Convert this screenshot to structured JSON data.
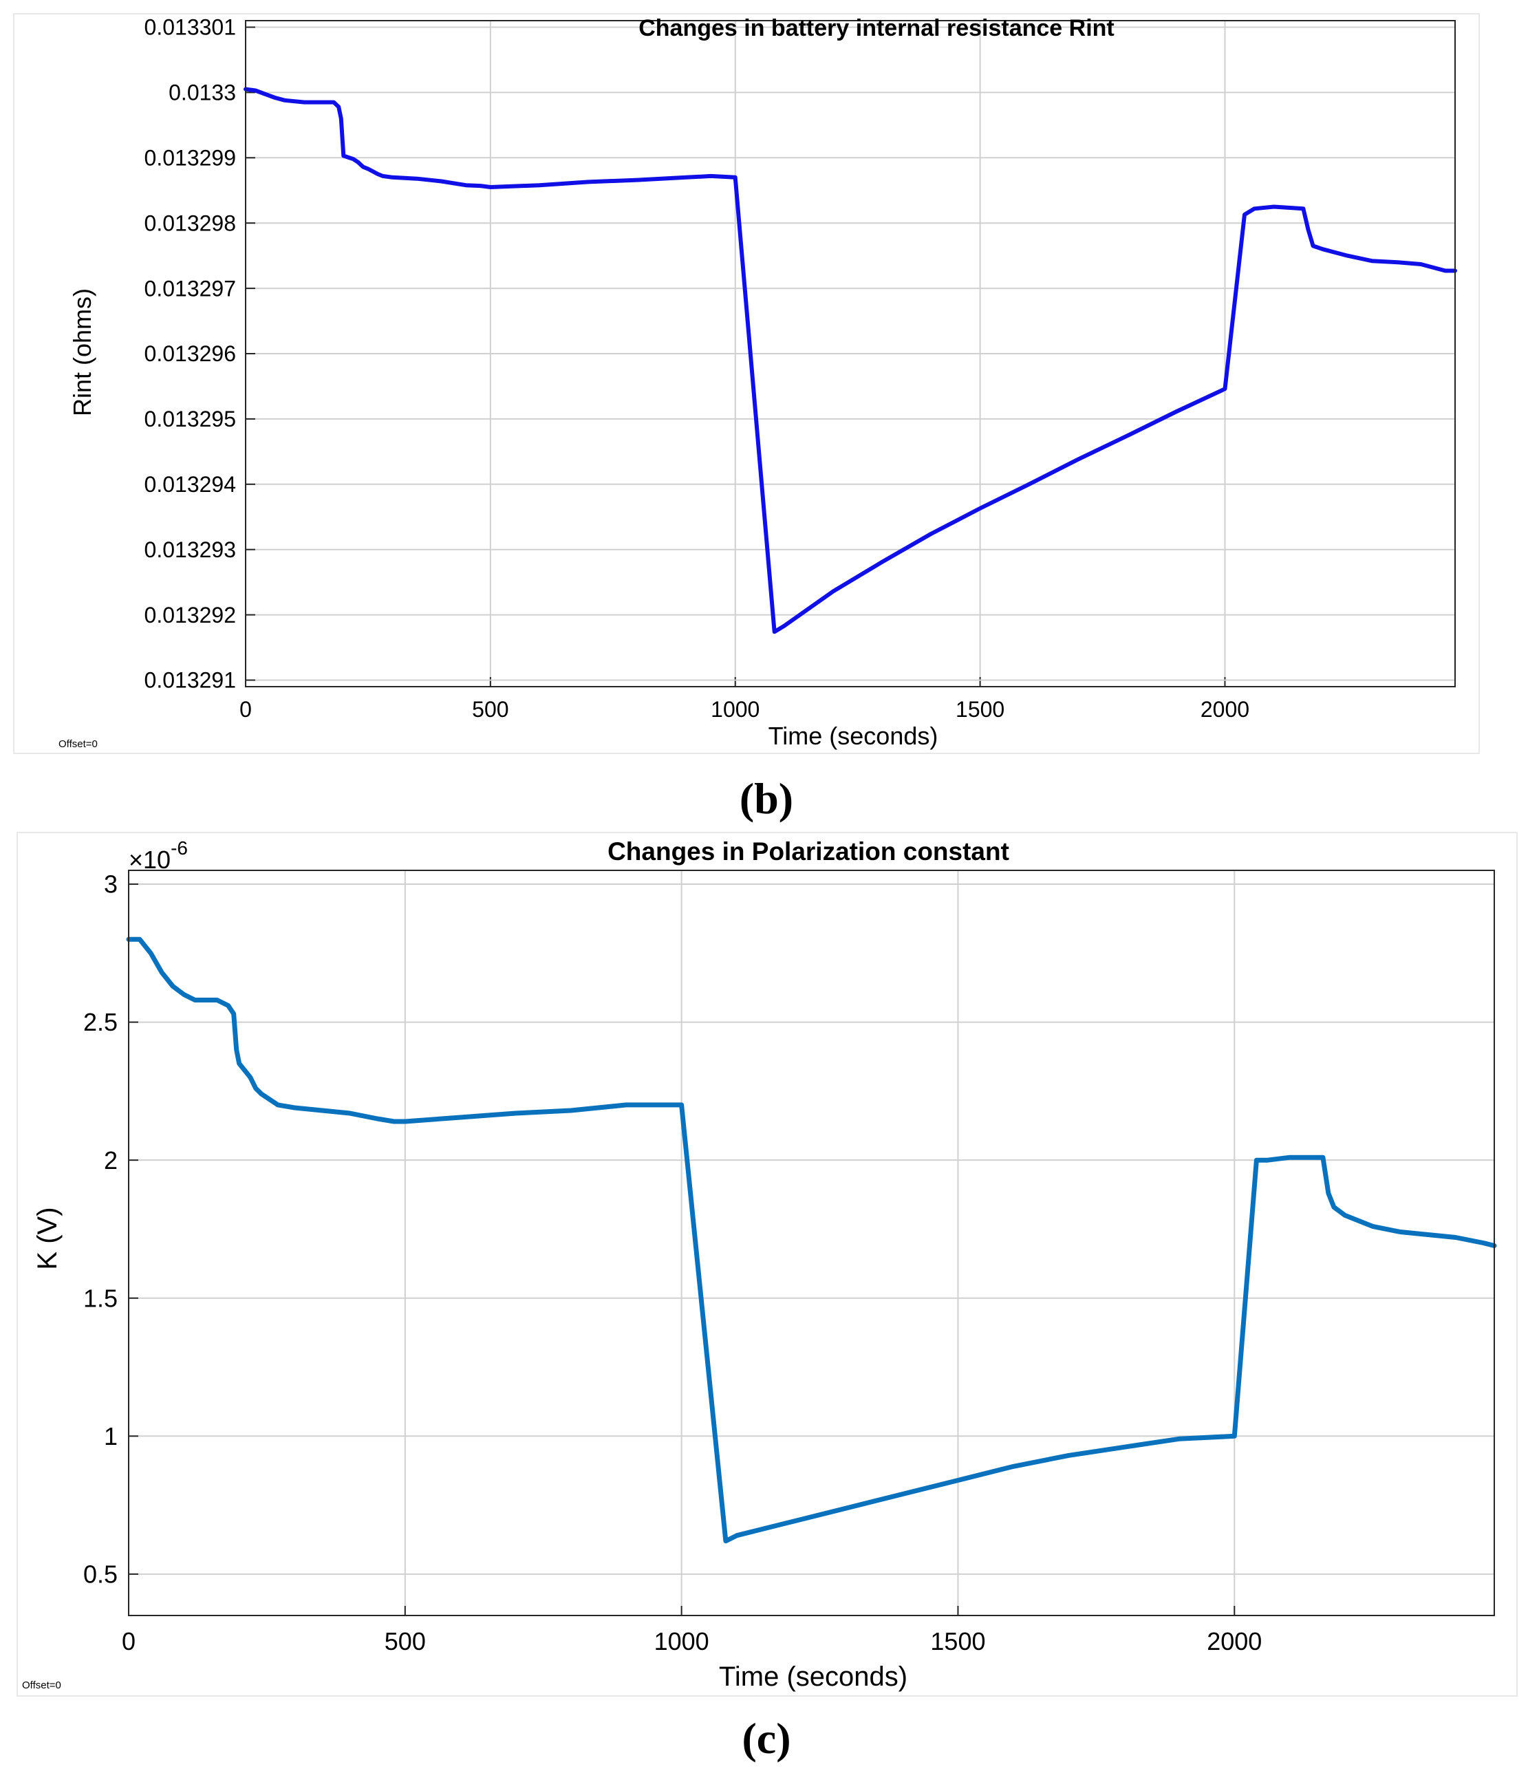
{
  "charts": [
    {
      "panel_label": "(b)",
      "offset_text": "Offset=0",
      "chart_data": {
        "type": "line",
        "title": "Changes in battery internal resistance  Rint",
        "xlabel": "Time (seconds)",
        "ylabel": "Rint (ohms)",
        "xlim": [
          0,
          2470
        ],
        "ylim": [
          0.0132909,
          0.0133011
        ],
        "x_ticks": [
          0,
          500,
          1000,
          1500,
          2000
        ],
        "x_tick_labels": [
          "0",
          "500",
          "1000",
          "1500",
          "2000"
        ],
        "y_ticks": [
          0.013291,
          0.013292,
          0.013293,
          0.013294,
          0.013295,
          0.013296,
          0.013297,
          0.013298,
          0.013299,
          0.0133,
          0.013301
        ],
        "y_tick_labels": [
          "0.013291",
          "0.013292",
          "0.013293",
          "0.013294",
          "0.013295",
          "0.013296",
          "0.013297",
          "0.013298",
          "0.013299",
          "0.0133",
          "0.013301"
        ],
        "grid": true,
        "line_color": "#1010e6",
        "series": [
          {
            "x": [
              0,
              20,
              40,
              60,
              80,
              120,
              150,
              180,
              190,
              195,
              200,
              220,
              230,
              240,
              250,
              270,
              280,
              300,
              350,
              400,
              450,
              480,
              500,
              600,
              700,
              800,
              900,
              950,
              1000,
              1080,
              1100,
              1200,
              1300,
              1400,
              1500,
              1600,
              1700,
              1800,
              1900,
              2000,
              2040,
              2060,
              2100,
              2160,
              2170,
              2180,
              2200,
              2250,
              2300,
              2350,
              2400,
              2450,
              2470
            ],
            "y": [
              0.01330005,
              0.01330003,
              0.013299975,
              0.01329992,
              0.01329988,
              0.01329985,
              0.01329985,
              0.01329985,
              0.01329978,
              0.0132996,
              0.01329903,
              0.01329898,
              0.01329893,
              0.01329886,
              0.01329883,
              0.01329875,
              0.01329872,
              0.0132987,
              0.01329868,
              0.01329864,
              0.01329858,
              0.01329857,
              0.01329855,
              0.01329858,
              0.01329863,
              0.01329866,
              0.0132987,
              0.01329872,
              0.0132987,
              0.01329174,
              0.01329183,
              0.01329236,
              0.01329281,
              0.01329324,
              0.01329363,
              0.013294,
              0.01329438,
              0.01329474,
              0.01329511,
              0.01329546,
              0.01329813,
              0.01329822,
              0.01329825,
              0.01329822,
              0.0132979,
              0.01329765,
              0.0132976,
              0.0132975,
              0.01329742,
              0.0132974,
              0.01329737,
              0.01329727,
              0.01329727
            ]
          }
        ]
      }
    },
    {
      "panel_label": "(c)",
      "offset_text": "Offset=0",
      "chart_data": {
        "type": "line",
        "title": "Changes in Polarization constant",
        "xlabel": "Time (seconds)",
        "ylabel": "K (V)",
        "y_exponent": "×10",
        "y_exponent_power": "-6",
        "xlim": [
          0,
          2470
        ],
        "ylim": [
          0.35,
          3.05
        ],
        "x_ticks": [
          0,
          500,
          1000,
          1500,
          2000
        ],
        "x_tick_labels": [
          "0",
          "500",
          "1000",
          "1500",
          "2000"
        ],
        "y_ticks": [
          0.5,
          1,
          1.5,
          2,
          2.5,
          3
        ],
        "y_tick_labels": [
          "0.5",
          "1",
          "1.5",
          "2",
          "2.5",
          "3"
        ],
        "grid": true,
        "line_color": "#0a72bd",
        "series": [
          {
            "x": [
              0,
              20,
              40,
              60,
              80,
              100,
              120,
              140,
              160,
              180,
              190,
              195,
              200,
              220,
              230,
              240,
              270,
              300,
              350,
              400,
              450,
              480,
              500,
              600,
              700,
              800,
              900,
              950,
              1000,
              1080,
              1100,
              1200,
              1300,
              1400,
              1500,
              1600,
              1700,
              1800,
              1900,
              2000,
              2040,
              2060,
              2100,
              2160,
              2170,
              2180,
              2200,
              2250,
              2300,
              2350,
              2400,
              2450,
              2470
            ],
            "y": [
              2.8,
              2.8,
              2.75,
              2.68,
              2.63,
              2.6,
              2.58,
              2.58,
              2.58,
              2.56,
              2.53,
              2.4,
              2.35,
              2.3,
              2.26,
              2.24,
              2.2,
              2.19,
              2.18,
              2.17,
              2.15,
              2.14,
              2.14,
              2.155,
              2.17,
              2.18,
              2.2,
              2.2,
              2.2,
              0.62,
              0.64,
              0.69,
              0.74,
              0.79,
              0.84,
              0.89,
              0.93,
              0.96,
              0.99,
              1.0,
              2.0,
              2.0,
              2.01,
              2.01,
              1.88,
              1.83,
              1.8,
              1.76,
              1.74,
              1.73,
              1.72,
              1.7,
              1.69
            ]
          }
        ]
      }
    }
  ]
}
